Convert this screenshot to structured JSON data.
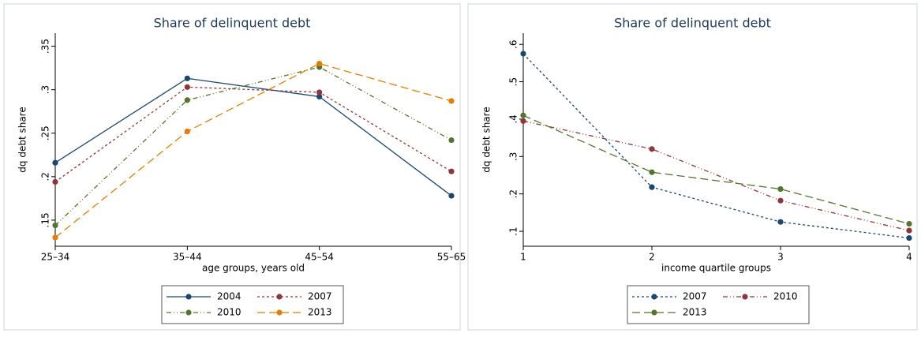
{
  "chart_data": [
    {
      "type": "line",
      "title": "Share of delinquent debt",
      "y_label": "dq debt share",
      "x_label": "age groups, years old",
      "categories": [
        "25–34",
        "35–44",
        "45–54",
        "55–65"
      ],
      "series": [
        {
          "name": "2004",
          "color": "#1a476f",
          "values": [
            0.216,
            0.313,
            0.292,
            0.178
          ]
        },
        {
          "name": "2007",
          "color": "#90353b",
          "values": [
            0.194,
            0.303,
            0.297,
            0.206
          ]
        },
        {
          "name": "2010",
          "color": "#55752f",
          "values": [
            0.144,
            0.288,
            0.326,
            0.242
          ]
        },
        {
          "name": "2013",
          "color": "#e37e00",
          "values": [
            0.13,
            0.252,
            0.33,
            0.287
          ]
        }
      ],
      "ylim": [
        0.12,
        0.365
      ],
      "yticks": [
        {
          "value": 0.15,
          "label": ".15"
        },
        {
          "value": 0.2,
          "label": ".2"
        },
        {
          "value": 0.25,
          "label": ".25"
        },
        {
          "value": 0.3,
          "label": ".3"
        },
        {
          "value": 0.35,
          "label": ".35"
        }
      ],
      "grid": false
    },
    {
      "type": "line",
      "title": "Share of delinquent debt",
      "y_label": "dq debt share",
      "x_label": "income quartile groups",
      "x": [
        1,
        2,
        3,
        4
      ],
      "series": [
        {
          "name": "2007",
          "color": "#1a476f",
          "values": [
            0.575,
            0.218,
            0.125,
            0.082
          ]
        },
        {
          "name": "2010",
          "color": "#90353b",
          "values": [
            0.395,
            0.32,
            0.182,
            0.102
          ]
        },
        {
          "name": "2013",
          "color": "#55752f",
          "values": [
            0.41,
            0.258,
            0.213,
            0.12
          ]
        }
      ],
      "xlim": [
        1,
        4
      ],
      "xticks": [
        1,
        2,
        3,
        4
      ],
      "ylim": [
        0.06,
        0.63
      ],
      "yticks": [
        {
          "value": 0.1,
          "label": ".1"
        },
        {
          "value": 0.2,
          "label": ".2"
        },
        {
          "value": 0.3,
          "label": ".3"
        },
        {
          "value": 0.4,
          "label": ".4"
        },
        {
          "value": 0.5,
          "label": ".5"
        },
        {
          "value": 0.6,
          "label": ".6"
        }
      ],
      "grid": false
    }
  ]
}
